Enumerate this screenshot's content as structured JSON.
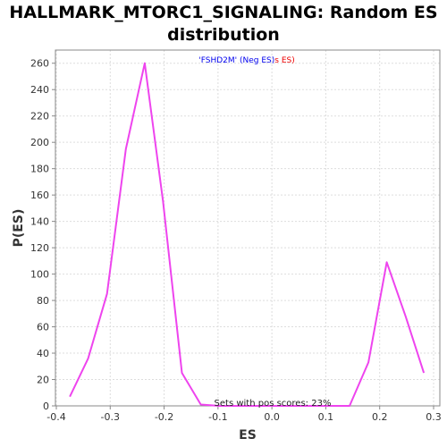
{
  "chart_data": {
    "type": "line",
    "title_line1": "HALLMARK_MTORC1_SIGNALING: Random ES",
    "title_line2": "distribution",
    "xlabel": "ES",
    "ylabel": "P(ES)",
    "xlim": [
      -0.4,
      0.3
    ],
    "ylim": [
      0,
      270
    ],
    "xticks": [
      "-0.4",
      "-0.3",
      "-0.2",
      "-0.1",
      "0.0",
      "0.1",
      "0.2",
      "0.3"
    ],
    "xtick_values": [
      -0.4,
      -0.3,
      -0.2,
      -0.1,
      0.0,
      0.1,
      0.2,
      0.3
    ],
    "yticks": [
      "0",
      "20",
      "40",
      "60",
      "80",
      "100",
      "120",
      "140",
      "160",
      "180",
      "200",
      "220",
      "240",
      "260"
    ],
    "ytick_values": [
      0,
      20,
      40,
      60,
      80,
      100,
      120,
      140,
      160,
      180,
      200,
      220,
      240,
      260
    ],
    "grid": true,
    "series": [
      {
        "color": "#ee44ee",
        "x": [
          -0.375,
          -0.341,
          -0.306,
          -0.271,
          -0.236,
          -0.202,
          -0.167,
          -0.132,
          -0.098,
          -0.063,
          -0.028,
          0.006,
          0.041,
          0.075,
          0.11,
          0.144,
          0.179,
          0.213,
          0.248,
          0.282
        ],
        "y": [
          7,
          36,
          85,
          195,
          260,
          155,
          25,
          1,
          0,
          0,
          0,
          0,
          0,
          0,
          0,
          0,
          33,
          109,
          68,
          25
        ]
      }
    ],
    "legend": {
      "part1": "'FSHD2M' (Neg ES)",
      "part1_color": "#0000ee",
      "part2": "s ES)",
      "part2_color": "#ee0000"
    },
    "annotation": "Sets with pos scores: 23%"
  }
}
